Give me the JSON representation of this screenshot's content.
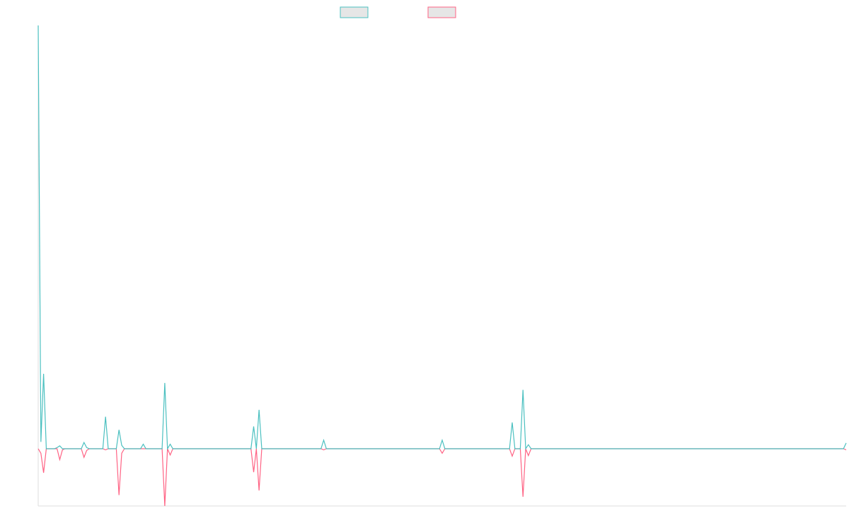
{
  "colors": {
    "series_a": "#4bc0c0",
    "series_b": "#ff6384",
    "axis": "#dddddd",
    "legend_fill": "#e6e6e6"
  },
  "chart_data": {
    "type": "line",
    "title": "",
    "xlabel": "",
    "ylabel": "",
    "x_count": 300,
    "ylim": [
      -1,
      7.4
    ],
    "grid": false,
    "legend_position": "top-center",
    "series": [
      {
        "color": "#4bc0c0",
        "points": [
          [
            0,
            7.4
          ],
          [
            1,
            0.12
          ],
          [
            2,
            1.31
          ],
          [
            3,
            0
          ],
          [
            4,
            0
          ],
          [
            5,
            0
          ],
          [
            6,
            0
          ],
          [
            7,
            0.02
          ],
          [
            8,
            0.05
          ],
          [
            9,
            0
          ],
          [
            16,
            0
          ],
          [
            17,
            0.11
          ],
          [
            18,
            0.02
          ],
          [
            19,
            0
          ],
          [
            24,
            0
          ],
          [
            25,
            0.56
          ],
          [
            26,
            0
          ],
          [
            29,
            0
          ],
          [
            30,
            0.33
          ],
          [
            31,
            0.06
          ],
          [
            32,
            0
          ],
          [
            38,
            0
          ],
          [
            39,
            0.08
          ],
          [
            40,
            0
          ],
          [
            46,
            0
          ],
          [
            47,
            1.15
          ],
          [
            48,
            0
          ],
          [
            49,
            0.08
          ],
          [
            50,
            0
          ],
          [
            79,
            0
          ],
          [
            80,
            0.39
          ],
          [
            81,
            0
          ],
          [
            82,
            0.68
          ],
          [
            83,
            0
          ],
          [
            105,
            0
          ],
          [
            106,
            0.15
          ],
          [
            107,
            0
          ],
          [
            149,
            0
          ],
          [
            150,
            0.15
          ],
          [
            151,
            0
          ],
          [
            175,
            0
          ],
          [
            176,
            0.46
          ],
          [
            177,
            0
          ],
          [
            179,
            0
          ],
          [
            180,
            1.03
          ],
          [
            181,
            0
          ],
          [
            182,
            0.07
          ],
          [
            183,
            0
          ],
          [
            299,
            0
          ],
          [
            300,
            0.1
          ]
        ]
      },
      {
        "color": "#ff6384",
        "points": [
          [
            0,
            0
          ],
          [
            1,
            -0.08
          ],
          [
            2,
            -0.42
          ],
          [
            3,
            0
          ],
          [
            7,
            0
          ],
          [
            8,
            -0.19
          ],
          [
            9,
            -0.02
          ],
          [
            10,
            0
          ],
          [
            16,
            0
          ],
          [
            17,
            -0.15
          ],
          [
            18,
            -0.03
          ],
          [
            19,
            0
          ],
          [
            24,
            0
          ],
          [
            25,
            -0.02
          ],
          [
            26,
            0
          ],
          [
            29,
            0
          ],
          [
            30,
            -0.81
          ],
          [
            31,
            -0.08
          ],
          [
            32,
            0
          ],
          [
            46,
            0
          ],
          [
            47,
            -1.0
          ],
          [
            48,
            0
          ],
          [
            49,
            -0.11
          ],
          [
            50,
            0
          ],
          [
            79,
            0
          ],
          [
            80,
            -0.41
          ],
          [
            81,
            0
          ],
          [
            82,
            -0.73
          ],
          [
            83,
            0
          ],
          [
            105,
            0
          ],
          [
            106,
            -0.02
          ],
          [
            107,
            0
          ],
          [
            149,
            0
          ],
          [
            150,
            -0.08
          ],
          [
            151,
            0
          ],
          [
            175,
            0
          ],
          [
            176,
            -0.13
          ],
          [
            177,
            0
          ],
          [
            179,
            0
          ],
          [
            180,
            -0.84
          ],
          [
            181,
            0
          ],
          [
            182,
            -0.12
          ],
          [
            183,
            0
          ],
          [
            299,
            0
          ],
          [
            300,
            -0.02
          ]
        ]
      }
    ]
  }
}
